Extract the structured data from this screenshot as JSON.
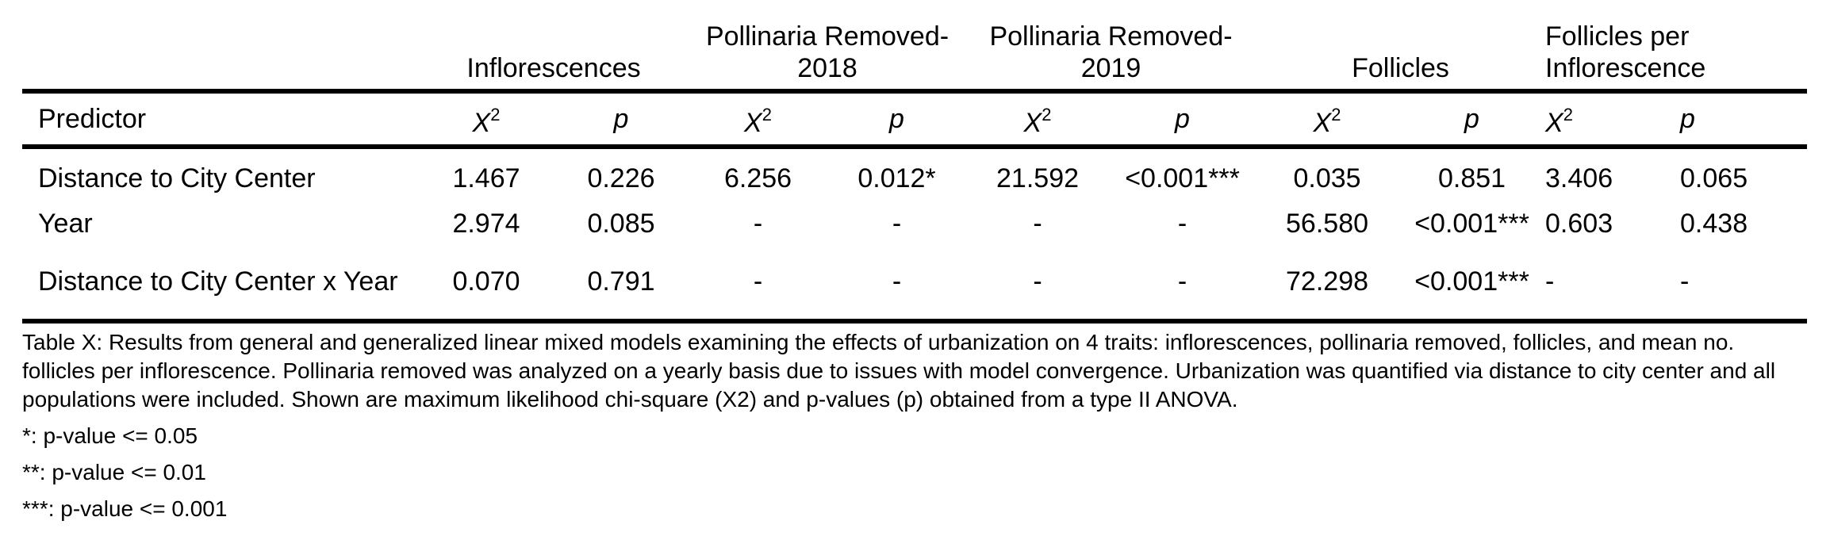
{
  "table": {
    "group_headers": [
      "Inflorescences",
      "Pollinaria Removed-2018",
      "Pollinaria Removed-2019",
      "Follicles",
      "Follicles per Inflorescence"
    ],
    "predictor_label": "Predictor",
    "stat_label": "X",
    "stat_superscript": "2",
    "p_label": "p",
    "rows": [
      {
        "predictor": "Distance to City Center",
        "values": [
          "1.467",
          "0.226",
          "6.256",
          "0.012*",
          "21.592",
          "<0.001***",
          "0.035",
          "0.851",
          "3.406",
          "0.065"
        ]
      },
      {
        "predictor": "Year",
        "values": [
          "2.974",
          "0.085",
          "-",
          "-",
          "-",
          "-",
          "56.580",
          "<0.001***",
          "0.603",
          "0.438"
        ]
      },
      {
        "predictor": "Distance to City Center x Year",
        "values": [
          "0.070",
          "0.791",
          "-",
          "-",
          "-",
          "-",
          "72.298",
          "<0.001***",
          "-",
          "-"
        ]
      }
    ]
  },
  "caption": "Table X: Results from general and generalized linear mixed models examining the effects of urbanization on 4 traits: inflorescences, pollinaria removed, follicles, and mean no. follicles per inflorescence. Pollinaria removed was analyzed on a yearly basis due to issues with model convergence. Urbanization was quantified via distance to city center and all populations were included. Shown are maximum likelihood chi-square (X2) and p-values (p) obtained from a type II ANOVA.",
  "notes": [
    "*: p-value <= 0.05",
    "**: p-value <= 0.01",
    "***: p-value <= 0.001"
  ]
}
